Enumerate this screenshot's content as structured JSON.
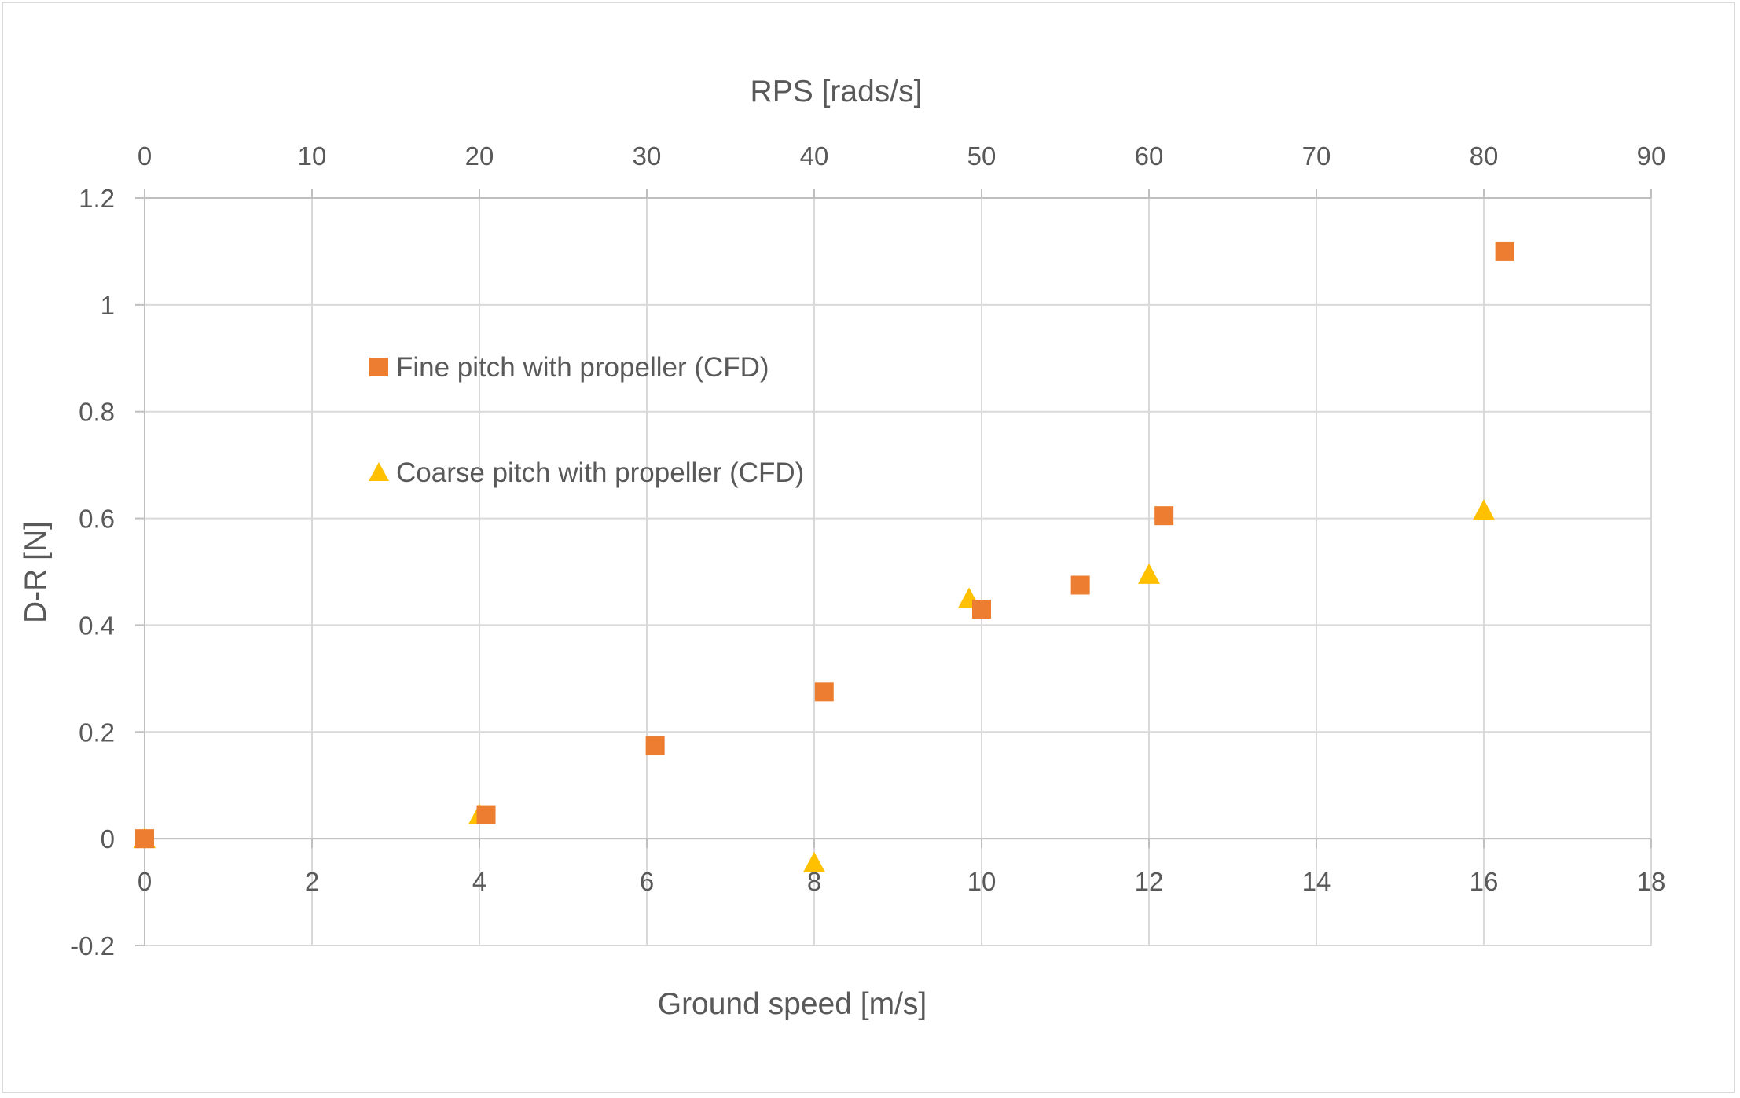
{
  "chart_data": {
    "type": "scatter",
    "xlabel": "Ground speed [m/s]",
    "x2label": "RPS [rads/s]",
    "ylabel": "D-R [N]",
    "xlim": [
      0,
      18
    ],
    "x2lim": [
      0,
      90
    ],
    "ylim": [
      -0.2,
      1.2
    ],
    "x_ticks": [
      0,
      2,
      4,
      6,
      8,
      10,
      12,
      14,
      16,
      18
    ],
    "x2_ticks": [
      0,
      10,
      20,
      30,
      40,
      50,
      60,
      70,
      80,
      90
    ],
    "y_ticks": [
      -0.2,
      0,
      0.2,
      0.4,
      0.6,
      0.8,
      1,
      1.2
    ],
    "x_tick_labels": [
      "0",
      "2",
      "4",
      "6",
      "8",
      "10",
      "12",
      "14",
      "16",
      "18"
    ],
    "x2_tick_labels": [
      "0",
      "10",
      "20",
      "30",
      "40",
      "50",
      "60",
      "70",
      "80",
      "90"
    ],
    "y_tick_labels": [
      "-0.2",
      "0",
      "0.2",
      "0.4",
      "0.6",
      "0.8",
      "1",
      "1.2"
    ],
    "grid": true,
    "legend_position": "upper-left inside plot",
    "series": [
      {
        "name": "Fine pitch with propeller (CFD)",
        "marker": "square",
        "color": "#ED7D31",
        "points": [
          {
            "x": 0,
            "y": 0
          },
          {
            "x": 4.08,
            "y": 0.045
          },
          {
            "x": 6.1,
            "y": 0.175
          },
          {
            "x": 8.12,
            "y": 0.275
          },
          {
            "x": 10.0,
            "y": 0.43
          },
          {
            "x": 11.18,
            "y": 0.475
          },
          {
            "x": 12.18,
            "y": 0.605
          },
          {
            "x": 16.25,
            "y": 1.1
          }
        ]
      },
      {
        "name": "Coarse pitch with propeller (CFD)",
        "marker": "triangle",
        "color": "#FFC000",
        "points": [
          {
            "x": 0,
            "y": 0
          },
          {
            "x": 4.0,
            "y": 0.045
          },
          {
            "x": 8.0,
            "y": -0.045
          },
          {
            "x": 9.85,
            "y": 0.45
          },
          {
            "x": 12.0,
            "y": 0.495
          },
          {
            "x": 16.0,
            "y": 0.615
          }
        ]
      }
    ]
  }
}
